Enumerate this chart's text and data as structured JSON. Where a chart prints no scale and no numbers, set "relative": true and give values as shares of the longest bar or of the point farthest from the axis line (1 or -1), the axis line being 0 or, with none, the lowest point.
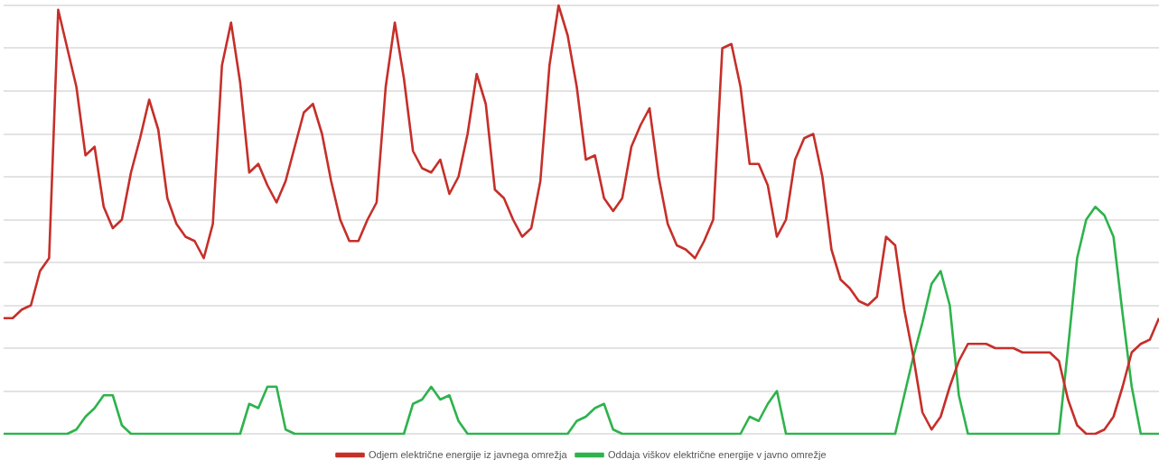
{
  "chart_data": {
    "type": "line",
    "relative": true,
    "grid": "y",
    "legend": "bottom",
    "marker": "none",
    "line_style": "solid",
    "categories": [
      null,
      null,
      null,
      null,
      null,
      null,
      null,
      null,
      null,
      null,
      null,
      null,
      null,
      null,
      null,
      null,
      null,
      null,
      null,
      null,
      null,
      null,
      null,
      null,
      null,
      null,
      null,
      null,
      null,
      null,
      null,
      null,
      null,
      null,
      null,
      null,
      null,
      null,
      null,
      null,
      null,
      null,
      null,
      null,
      null,
      null,
      null,
      null,
      null,
      null,
      null,
      null,
      null,
      null,
      null,
      null,
      null,
      null,
      null,
      null,
      null,
      null,
      null,
      null,
      null,
      null,
      null,
      null,
      null,
      null,
      null,
      null,
      null,
      null,
      null,
      null,
      null,
      null,
      null,
      null,
      null,
      null,
      null,
      null,
      null,
      null,
      null,
      null,
      null,
      null,
      null,
      null,
      null,
      null,
      null,
      null,
      null,
      null,
      null,
      null,
      null,
      null,
      null,
      null,
      null,
      null,
      null,
      null,
      null,
      null,
      null,
      null,
      null,
      null,
      null,
      null,
      null,
      null,
      null,
      null,
      null,
      null,
      null,
      null,
      null,
      null,
      null,
      null
    ],
    "series": [
      {
        "name": "Odjem električne energije iz javnega omrežja",
        "color": "#c62f2a",
        "values": [
          0.27,
          0.27,
          0.29,
          0.3,
          0.38,
          0.41,
          0.99,
          0.9,
          0.81,
          0.65,
          0.67,
          0.53,
          0.48,
          0.5,
          0.61,
          0.69,
          0.78,
          0.71,
          0.55,
          0.49,
          0.46,
          0.45,
          0.41,
          0.49,
          0.86,
          0.96,
          0.82,
          0.61,
          0.63,
          0.58,
          0.54,
          0.59,
          0.67,
          0.75,
          0.77,
          0.7,
          0.59,
          0.5,
          0.45,
          0.45,
          0.5,
          0.54,
          0.81,
          0.96,
          0.83,
          0.66,
          0.62,
          0.61,
          0.64,
          0.56,
          0.6,
          0.7,
          0.84,
          0.77,
          0.57,
          0.55,
          0.5,
          0.46,
          0.48,
          0.59,
          0.86,
          1,
          0.93,
          0.81,
          0.64,
          0.65,
          0.55,
          0.52,
          0.55,
          0.67,
          0.72,
          0.76,
          0.6,
          0.49,
          0.44,
          0.43,
          0.41,
          0.45,
          0.5,
          0.9,
          0.91,
          0.81,
          0.63,
          0.63,
          0.58,
          0.46,
          0.5,
          0.64,
          0.69,
          0.7,
          0.6,
          0.43,
          0.36,
          0.34,
          0.31,
          0.3,
          0.32,
          0.46,
          0.44,
          0.29,
          0.18,
          0.05,
          0.01,
          0.04,
          0.11,
          0.17,
          0.21,
          0.21,
          0.21,
          0.2,
          0.2,
          0.2,
          0.19,
          0.19,
          0.19,
          0.19,
          0.17,
          0.08,
          0.02,
          0,
          0,
          0.01,
          0.04,
          0.11,
          0.19,
          0.21,
          0.22,
          0.27
        ]
      },
      {
        "name": "Oddaja viškov električne energije v javno omrežje",
        "color": "#2eb34c",
        "values": [
          0,
          0,
          0,
          0,
          0,
          0,
          0,
          0,
          0.01,
          0.04,
          0.06,
          0.09,
          0.09,
          0.02,
          0,
          0,
          0,
          0,
          0,
          0,
          0,
          0,
          0,
          0,
          0,
          0,
          0,
          0.07,
          0.06,
          0.11,
          0.11,
          0.01,
          0,
          0,
          0,
          0,
          0,
          0,
          0,
          0,
          0,
          0,
          0,
          0,
          0,
          0.07,
          0.08,
          0.11,
          0.08,
          0.09,
          0.03,
          0,
          0,
          0,
          0,
          0,
          0,
          0,
          0,
          0,
          0,
          0,
          0,
          0.03,
          0.04,
          0.06,
          0.07,
          0.01,
          0,
          0,
          0,
          0,
          0,
          0,
          0,
          0,
          0,
          0,
          0,
          0,
          0,
          0,
          0.04,
          0.03,
          0.07,
          0.1,
          0,
          0,
          0,
          0,
          0,
          0,
          0,
          0,
          0,
          0,
          0,
          0,
          0,
          0.09,
          0.18,
          0.26,
          0.35,
          0.38,
          0.3,
          0.09,
          0,
          0,
          0,
          0,
          0,
          0,
          0,
          0,
          0,
          0,
          0,
          0.2,
          0.41,
          0.5,
          0.53,
          0.51,
          0.46,
          0.28,
          0.11,
          0,
          0,
          0
        ]
      }
    ]
  }
}
